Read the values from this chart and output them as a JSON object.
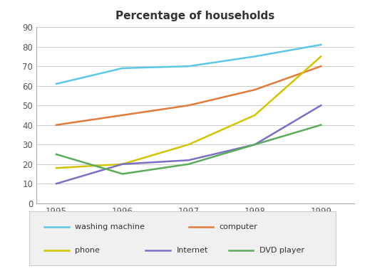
{
  "title": "Percentage of households",
  "years": [
    1995,
    1996,
    1997,
    1998,
    1999
  ],
  "series": {
    "washing machine": {
      "values": [
        61,
        69,
        70,
        75,
        81
      ],
      "color": "#5bc8e8"
    },
    "computer": {
      "values": [
        40,
        45,
        50,
        58,
        70
      ],
      "color": "#e07b3a"
    },
    "phone": {
      "values": [
        18,
        20,
        30,
        45,
        75
      ],
      "color": "#d4c400"
    },
    "Internet": {
      "values": [
        10,
        20,
        22,
        30,
        50
      ],
      "color": "#7b6fc4"
    },
    "DVD player": {
      "values": [
        25,
        15,
        20,
        30,
        40
      ],
      "color": "#5aab5a"
    }
  },
  "ylim": [
    0,
    90
  ],
  "yticks": [
    0,
    10,
    20,
    30,
    40,
    50,
    60,
    70,
    80,
    90
  ],
  "xlim": [
    1994.7,
    1999.5
  ],
  "background_color": "#ffffff",
  "grid_color": "#cccccc",
  "legend_row1": [
    "washing machine",
    "computer"
  ],
  "legend_row2": [
    "phone",
    "Internet",
    "DVD player"
  ],
  "title_fontsize": 11,
  "tick_fontsize": 8.5,
  "legend_fontsize": 8
}
